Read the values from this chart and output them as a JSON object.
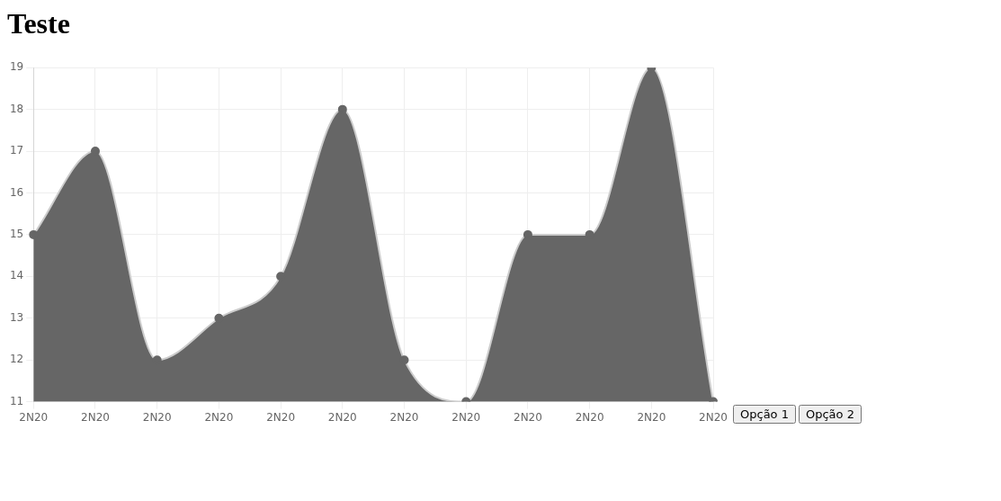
{
  "chart_data": {
    "type": "area",
    "title": "Teste",
    "categories": [
      "2N20",
      "2N20",
      "2N20",
      "2N20",
      "2N20",
      "2N20",
      "2N20",
      "2N20",
      "2N20",
      "2N20",
      "2N20",
      "2N20"
    ],
    "values": [
      15,
      17,
      12,
      13,
      14,
      18,
      12,
      11,
      15,
      15,
      19,
      11
    ],
    "color": "#666666",
    "ylim": [
      11,
      19
    ],
    "yticks": [
      11,
      12,
      13,
      14,
      15,
      16,
      17,
      18,
      19
    ],
    "grid": true,
    "legend": false,
    "marker": "circle",
    "annotations": [
      "Opção 1",
      "Opção 2"
    ]
  }
}
